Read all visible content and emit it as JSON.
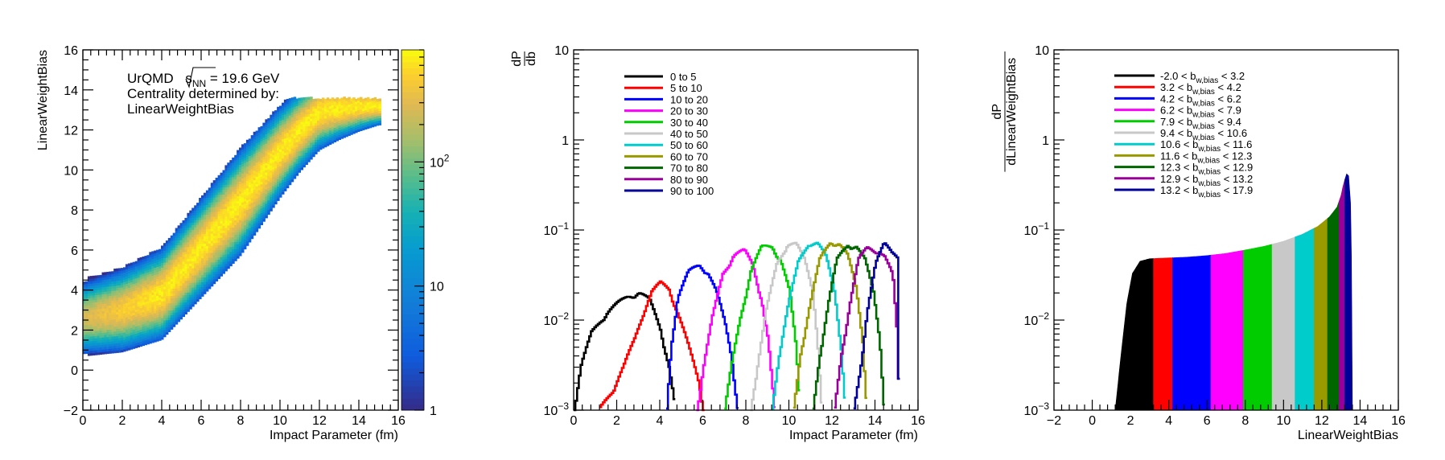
{
  "chart_data": [
    {
      "type": "heatmap",
      "xlabel": "Impact Parameter (fm)",
      "ylabel": "LinearWeightBias",
      "xlim": [
        0,
        16
      ],
      "ylim": [
        -2,
        16
      ],
      "x_ticks": [
        "0",
        "2",
        "4",
        "6",
        "8",
        "10",
        "12",
        "14",
        "16"
      ],
      "y_ticks": [
        "−2",
        "0",
        "2",
        "4",
        "6",
        "8",
        "10",
        "12",
        "14",
        "16"
      ],
      "annotation": {
        "line1_prefix": "UrQMD ",
        "sqrt_s": "s",
        "sqrt_sub": "NN",
        "line1_suffix": " = 19.6 GeV",
        "line2": "Centrality determined by:",
        "line3": "LinearWeightBias"
      },
      "colorbar": {
        "scale": "log",
        "range": [
          1,
          800
        ],
        "ticks": [
          {
            "value": 1,
            "base": "1",
            "exp": ""
          },
          {
            "value": 10,
            "base": "10",
            "exp": ""
          },
          {
            "value": 100,
            "base": "10",
            "exp": "2"
          }
        ]
      },
      "band": {
        "mean_y_at_b": [
          [
            0,
            2.6
          ],
          [
            2,
            3.0
          ],
          [
            4,
            3.8
          ],
          [
            6,
            6.1
          ],
          [
            8,
            8.4
          ],
          [
            10,
            10.9
          ],
          [
            11,
            12.0
          ],
          [
            12,
            12.9
          ],
          [
            13,
            13.1
          ],
          [
            14,
            13.2
          ],
          [
            15,
            13.2
          ]
        ],
        "half_width_at_b": [
          [
            0,
            1.0
          ],
          [
            4,
            1.2
          ],
          [
            8,
            1.4
          ],
          [
            12,
            1.0
          ],
          [
            15,
            0.5
          ]
        ],
        "peak_count": 700
      }
    },
    {
      "type": "line",
      "xlabel": "Impact Parameter (fm)",
      "ylabel_num": "dP",
      "ylabel_den": "db",
      "yscale": "log",
      "xlim": [
        0,
        16
      ],
      "ylim": [
        0.001,
        10
      ],
      "x_ticks": [
        "0",
        "2",
        "4",
        "6",
        "8",
        "10",
        "12",
        "14",
        "16"
      ],
      "y_ticks": [
        {
          "value": 0.001,
          "base": "10",
          "exp": "−3"
        },
        {
          "value": 0.01,
          "base": "10",
          "exp": "−2"
        },
        {
          "value": 0.1,
          "base": "10",
          "exp": "−1"
        },
        {
          "value": 1,
          "base": "1",
          "exp": ""
        },
        {
          "value": 10,
          "base": "10",
          "exp": ""
        }
      ],
      "series": [
        {
          "name": "0 to 5",
          "color": "#000000",
          "points": [
            [
              0,
              0.001
            ],
            [
              0.3,
              0.003
            ],
            [
              0.8,
              0.007
            ],
            [
              1.5,
              0.012
            ],
            [
              2.5,
              0.018
            ],
            [
              3.0,
              0.02
            ],
            [
              3.5,
              0.016
            ],
            [
              4.0,
              0.008
            ],
            [
              4.4,
              0.003
            ],
            [
              4.7,
              0.001
            ]
          ]
        },
        {
          "name": "5 to 10",
          "color": "#ff0000",
          "points": [
            [
              1.2,
              0.001
            ],
            [
              1.8,
              0.0017
            ],
            [
              2.3,
              0.003
            ],
            [
              2.8,
              0.006
            ],
            [
              3.2,
              0.012
            ],
            [
              3.6,
              0.02
            ],
            [
              4.0,
              0.025
            ],
            [
              4.4,
              0.022
            ],
            [
              4.8,
              0.012
            ],
            [
              5.3,
              0.005
            ],
            [
              5.8,
              0.002
            ],
            [
              6.0,
              0.001
            ]
          ]
        },
        {
          "name": "10 to 20",
          "color": "#0000ff",
          "points": [
            [
              4.3,
              0.001
            ],
            [
              4.5,
              0.005
            ],
            [
              4.8,
              0.018
            ],
            [
              5.3,
              0.033
            ],
            [
              5.8,
              0.04
            ],
            [
              6.2,
              0.034
            ],
            [
              6.6,
              0.02
            ],
            [
              7.0,
              0.009
            ],
            [
              7.3,
              0.004
            ],
            [
              7.6,
              0.001
            ]
          ]
        },
        {
          "name": "20 to 30",
          "color": "#ff00ff",
          "points": [
            [
              5.7,
              0.001
            ],
            [
              6.0,
              0.003
            ],
            [
              6.4,
              0.01
            ],
            [
              6.9,
              0.032
            ],
            [
              7.4,
              0.052
            ],
            [
              7.9,
              0.057
            ],
            [
              8.3,
              0.04
            ],
            [
              8.7,
              0.017
            ],
            [
              9.0,
              0.006
            ],
            [
              9.3,
              0.001
            ]
          ]
        },
        {
          "name": "30 to 40",
          "color": "#00cc00",
          "points": [
            [
              7.0,
              0.001
            ],
            [
              7.3,
              0.003
            ],
            [
              7.7,
              0.01
            ],
            [
              8.2,
              0.035
            ],
            [
              8.7,
              0.062
            ],
            [
              9.2,
              0.065
            ],
            [
              9.6,
              0.045
            ],
            [
              10.0,
              0.02
            ],
            [
              10.3,
              0.005
            ],
            [
              10.5,
              0.001
            ]
          ]
        },
        {
          "name": "40 to 50",
          "color": "#c8c8c8",
          "points": [
            [
              8.2,
              0.001
            ],
            [
              8.5,
              0.003
            ],
            [
              8.9,
              0.012
            ],
            [
              9.4,
              0.04
            ],
            [
              9.9,
              0.07
            ],
            [
              10.3,
              0.068
            ],
            [
              10.7,
              0.045
            ],
            [
              11.1,
              0.02
            ],
            [
              11.3,
              0.006
            ],
            [
              11.5,
              0.001
            ]
          ]
        },
        {
          "name": "50 to 60",
          "color": "#00cccc",
          "points": [
            [
              9.2,
              0.001
            ],
            [
              9.5,
              0.004
            ],
            [
              9.9,
              0.013
            ],
            [
              10.4,
              0.042
            ],
            [
              10.9,
              0.072
            ],
            [
              11.3,
              0.07
            ],
            [
              11.7,
              0.048
            ],
            [
              12.1,
              0.02
            ],
            [
              12.4,
              0.005
            ],
            [
              12.6,
              0.001
            ]
          ]
        },
        {
          "name": "60 to 70",
          "color": "#999900",
          "points": [
            [
              10.2,
              0.001
            ],
            [
              10.5,
              0.004
            ],
            [
              10.9,
              0.013
            ],
            [
              11.4,
              0.045
            ],
            [
              11.9,
              0.073
            ],
            [
              12.3,
              0.07
            ],
            [
              12.7,
              0.05
            ],
            [
              13.1,
              0.022
            ],
            [
              13.4,
              0.006
            ],
            [
              13.6,
              0.001
            ]
          ]
        },
        {
          "name": "70 to 80",
          "color": "#006600",
          "points": [
            [
              11.1,
              0.001
            ],
            [
              11.4,
              0.004
            ],
            [
              11.8,
              0.015
            ],
            [
              12.2,
              0.045
            ],
            [
              12.7,
              0.068
            ],
            [
              13.1,
              0.065
            ],
            [
              13.5,
              0.045
            ],
            [
              13.9,
              0.02
            ],
            [
              14.2,
              0.006
            ],
            [
              14.4,
              0.001
            ]
          ]
        },
        {
          "name": "80 to 90",
          "color": "#990099",
          "points": [
            [
              12.1,
              0.001
            ],
            [
              12.4,
              0.004
            ],
            [
              12.8,
              0.015
            ],
            [
              13.2,
              0.045
            ],
            [
              13.6,
              0.062
            ],
            [
              14.0,
              0.06
            ],
            [
              14.4,
              0.05
            ],
            [
              14.8,
              0.03
            ],
            [
              15.0,
              0.007
            ],
            [
              15.1,
              0.001
            ]
          ]
        },
        {
          "name": "90 to 100",
          "color": "#000099",
          "points": [
            [
              13.0,
              0.001
            ],
            [
              13.3,
              0.003
            ],
            [
              13.6,
              0.012
            ],
            [
              14.0,
              0.04
            ],
            [
              14.4,
              0.07
            ],
            [
              14.8,
              0.06
            ],
            [
              15.0,
              0.05
            ],
            [
              15.1,
              0.001
            ]
          ]
        }
      ]
    },
    {
      "type": "area",
      "xlabel": "LinearWeightBias",
      "ylabel_num": "dP",
      "ylabel_den": "dLinearWeightBias",
      "yscale": "log",
      "xlim": [
        -2,
        16
      ],
      "ylim": [
        0.001,
        10
      ],
      "x_ticks": [
        "−2",
        "0",
        "2",
        "4",
        "6",
        "8",
        "10",
        "12",
        "14",
        "16"
      ],
      "y_ticks": [
        {
          "value": 0.001,
          "base": "10",
          "exp": "−3"
        },
        {
          "value": 0.01,
          "base": "10",
          "exp": "−2"
        },
        {
          "value": 0.1,
          "base": "10",
          "exp": "−1"
        },
        {
          "value": 1,
          "base": "1",
          "exp": ""
        },
        {
          "value": 10,
          "base": "10",
          "exp": ""
        }
      ],
      "series": [
        {
          "name": "-2.0 < b_w,bias < 3.2",
          "lo": "-2.0",
          "hi": "3.2",
          "color": "#000000",
          "range": [
            1.2,
            3.2
          ]
        },
        {
          "name": "3.2 < b_w,bias < 4.2",
          "lo": "3.2",
          "hi": "4.2",
          "color": "#ff0000",
          "range": [
            3.2,
            4.2
          ]
        },
        {
          "name": "4.2 < b_w,bias < 6.2",
          "lo": "4.2",
          "hi": "6.2",
          "color": "#0000ff",
          "range": [
            4.2,
            6.2
          ]
        },
        {
          "name": "6.2 < b_w,bias < 7.9",
          "lo": "6.2",
          "hi": "7.9",
          "color": "#ff00ff",
          "range": [
            6.2,
            7.9
          ]
        },
        {
          "name": "7.9 < b_w,bias < 9.4",
          "lo": "7.9",
          "hi": "9.4",
          "color": "#00cc00",
          "range": [
            7.9,
            9.4
          ]
        },
        {
          "name": "9.4 < b_w,bias < 10.6",
          "lo": "9.4",
          "hi": "10.6",
          "color": "#c8c8c8",
          "range": [
            9.4,
            10.6
          ]
        },
        {
          "name": "10.6 < b_w,bias < 11.6",
          "lo": "10.6",
          "hi": "11.6",
          "color": "#00cccc",
          "range": [
            10.6,
            11.6
          ]
        },
        {
          "name": "11.6 < b_w,bias < 12.3",
          "lo": "11.6",
          "hi": "12.3",
          "color": "#999900",
          "range": [
            11.6,
            12.3
          ]
        },
        {
          "name": "12.3 < b_w,bias < 12.9",
          "lo": "12.3",
          "hi": "12.9",
          "color": "#006600",
          "range": [
            12.3,
            12.9
          ]
        },
        {
          "name": "12.9 < b_w,bias < 13.2",
          "lo": "12.9",
          "hi": "13.2",
          "color": "#990099",
          "range": [
            12.9,
            13.2
          ]
        },
        {
          "name": "13.2 < b_w,bias < 17.9",
          "lo": "13.2",
          "hi": "17.9",
          "color": "#000099",
          "range": [
            13.2,
            13.6
          ]
        }
      ],
      "envelope": [
        [
          1.2,
          0.001
        ],
        [
          1.5,
          0.004
        ],
        [
          1.8,
          0.015
        ],
        [
          2.1,
          0.033
        ],
        [
          2.5,
          0.045
        ],
        [
          3.0,
          0.048
        ],
        [
          4.0,
          0.049
        ],
        [
          5.0,
          0.05
        ],
        [
          6.0,
          0.052
        ],
        [
          7.0,
          0.055
        ],
        [
          8.0,
          0.06
        ],
        [
          9.0,
          0.066
        ],
        [
          10.0,
          0.075
        ],
        [
          11.0,
          0.09
        ],
        [
          11.8,
          0.11
        ],
        [
          12.4,
          0.14
        ],
        [
          12.8,
          0.18
        ],
        [
          13.0,
          0.24
        ],
        [
          13.1,
          0.3
        ],
        [
          13.2,
          0.36
        ],
        [
          13.3,
          0.42
        ],
        [
          13.4,
          0.4
        ],
        [
          13.5,
          0.2
        ],
        [
          13.55,
          0.05
        ],
        [
          13.6,
          0.001
        ]
      ]
    }
  ]
}
